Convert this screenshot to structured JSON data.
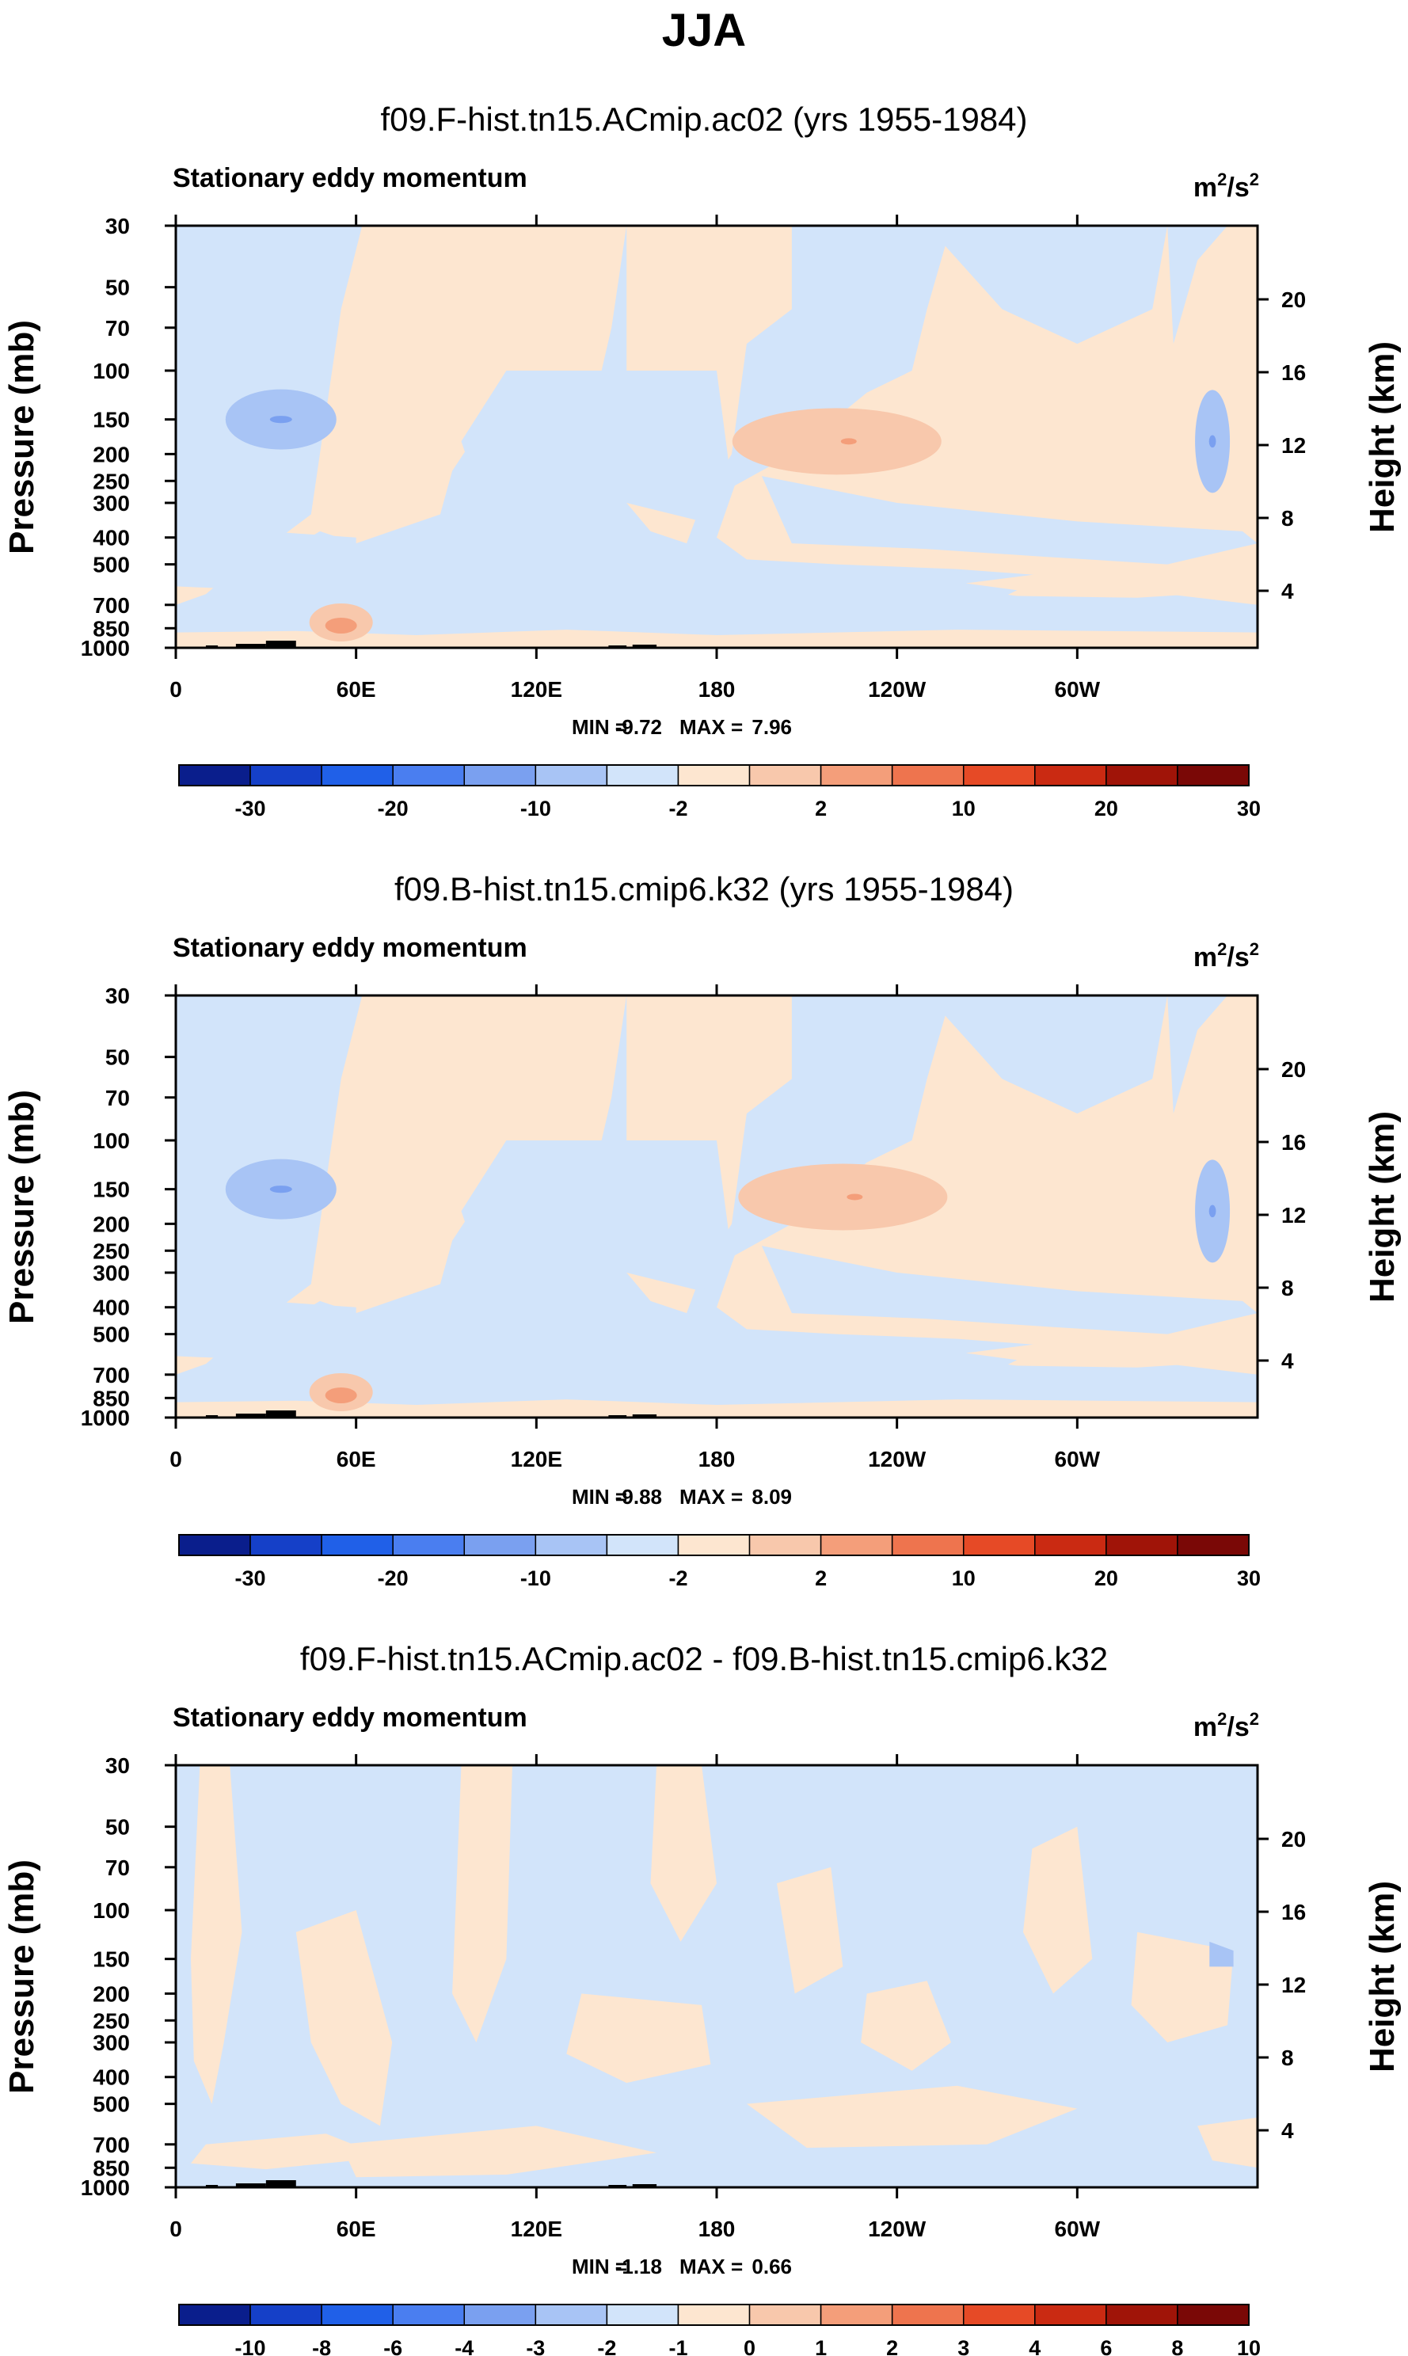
{
  "page_title": "JJA",
  "chart_data": [
    {
      "type": "contour",
      "title": "f09.F-hist.tn15.ACmip.ac02 (yrs 1955-1984)",
      "variable": "Stationary eddy momentum",
      "units": "m²/s²",
      "unit_base": "m",
      "unit_mid": "/s",
      "unit_exp": "2",
      "ylabel": "Pressure (mb)",
      "ylabel_right": "Height (km)",
      "x_ticks": [
        "0",
        "60E",
        "120E",
        "180",
        "120W",
        "60W"
      ],
      "x_tick_values": [
        0,
        60,
        120,
        180,
        240,
        300
      ],
      "x_range": [
        0,
        360
      ],
      "pressure_ticks": [
        "30",
        "50",
        "70",
        "100",
        "150",
        "200",
        "250",
        "300",
        "400",
        "500",
        "700",
        "850",
        "1000"
      ],
      "pressure_values": [
        30,
        50,
        70,
        100,
        150,
        200,
        250,
        300,
        400,
        500,
        700,
        850,
        1000
      ],
      "height_ticks": [
        "4",
        "8",
        "12",
        "16",
        "20"
      ],
      "height_values": [
        4,
        8,
        12,
        16,
        20
      ],
      "min_label": "MIN =",
      "min": "-9.72",
      "max_label": "MAX =",
      "max": "7.96",
      "colorbar_labels": [
        "-30",
        "-20",
        "-10",
        "-2",
        "2",
        "10",
        "20",
        "30"
      ],
      "colorbar_colors": [
        "#0a1e8c",
        "#1540c8",
        "#2060e8",
        "#4a7ef0",
        "#7aa0f0",
        "#a8c4f5",
        "#d2e4fa",
        "#fde6d0",
        "#f8c8ac",
        "#f49e7a",
        "#ee744e",
        "#e64a26",
        "#ca2a12",
        "#a01408",
        "#7a0806"
      ],
      "features": [
        {
          "kind": "blue",
          "lon": 35,
          "p": 150,
          "label": "negative maximum"
        },
        {
          "kind": "red",
          "lon": 220,
          "p": 180,
          "label": "positive maximum"
        },
        {
          "kind": "red",
          "lon": 55,
          "p": 810,
          "label": "low-level positive"
        },
        {
          "kind": "blue",
          "lon": 345,
          "p": 180,
          "label": "east negative"
        }
      ]
    },
    {
      "type": "contour",
      "title": "f09.B-hist.tn15.cmip6.k32 (yrs 1955-1984)",
      "variable": "Stationary eddy momentum",
      "units": "m²/s²",
      "unit_base": "m",
      "unit_mid": "/s",
      "unit_exp": "2",
      "ylabel": "Pressure (mb)",
      "ylabel_right": "Height (km)",
      "x_ticks": [
        "0",
        "60E",
        "120E",
        "180",
        "120W",
        "60W"
      ],
      "x_tick_values": [
        0,
        60,
        120,
        180,
        240,
        300
      ],
      "x_range": [
        0,
        360
      ],
      "pressure_ticks": [
        "30",
        "50",
        "70",
        "100",
        "150",
        "200",
        "250",
        "300",
        "400",
        "500",
        "700",
        "850",
        "1000"
      ],
      "pressure_values": [
        30,
        50,
        70,
        100,
        150,
        200,
        250,
        300,
        400,
        500,
        700,
        850,
        1000
      ],
      "height_ticks": [
        "4",
        "8",
        "12",
        "16",
        "20"
      ],
      "height_values": [
        4,
        8,
        12,
        16,
        20
      ],
      "min_label": "MIN =",
      "min": "-9.88",
      "max_label": "MAX =",
      "max": "8.09",
      "colorbar_labels": [
        "-30",
        "-20",
        "-10",
        "-2",
        "2",
        "10",
        "20",
        "30"
      ],
      "colorbar_colors": [
        "#0a1e8c",
        "#1540c8",
        "#2060e8",
        "#4a7ef0",
        "#7aa0f0",
        "#a8c4f5",
        "#d2e4fa",
        "#fde6d0",
        "#f8c8ac",
        "#f49e7a",
        "#ee744e",
        "#e64a26",
        "#ca2a12",
        "#a01408",
        "#7a0806"
      ],
      "features": [
        {
          "kind": "blue",
          "lon": 35,
          "p": 150,
          "label": "negative maximum"
        },
        {
          "kind": "red",
          "lon": 222,
          "p": 160,
          "label": "positive maximum"
        },
        {
          "kind": "red",
          "lon": 55,
          "p": 810,
          "label": "low-level positive"
        },
        {
          "kind": "blue",
          "lon": 345,
          "p": 180,
          "label": "east negative"
        }
      ]
    },
    {
      "type": "contour",
      "title": "f09.F-hist.tn15.ACmip.ac02 - f09.B-hist.tn15.cmip6.k32",
      "variable": "Stationary eddy momentum",
      "units": "m²/s²",
      "unit_base": "m",
      "unit_mid": "/s",
      "unit_exp": "2",
      "ylabel": "Pressure (mb)",
      "ylabel_right": "Height (km)",
      "x_ticks": [
        "0",
        "60E",
        "120E",
        "180",
        "120W",
        "60W"
      ],
      "x_tick_values": [
        0,
        60,
        120,
        180,
        240,
        300
      ],
      "x_range": [
        0,
        360
      ],
      "pressure_ticks": [
        "30",
        "50",
        "70",
        "100",
        "150",
        "200",
        "250",
        "300",
        "400",
        "500",
        "700",
        "850",
        "1000"
      ],
      "pressure_values": [
        30,
        50,
        70,
        100,
        150,
        200,
        250,
        300,
        400,
        500,
        700,
        850,
        1000
      ],
      "height_ticks": [
        "4",
        "8",
        "12",
        "16",
        "20"
      ],
      "height_values": [
        4,
        8,
        12,
        16,
        20
      ],
      "min_label": "MIN =",
      "min": "-1.18",
      "max_label": "MAX =",
      "max": "0.66",
      "colorbar_labels": [
        "-10",
        "-8",
        "-6",
        "-4",
        "-3",
        "-2",
        "-1",
        "0",
        "1",
        "2",
        "3",
        "4",
        "6",
        "8",
        "10"
      ],
      "colorbar_colors": [
        "#0a1e8c",
        "#1540c8",
        "#2060e8",
        "#4a7ef0",
        "#7aa0f0",
        "#a8c4f5",
        "#d2e4fa",
        "#fde6d0",
        "#f8c8ac",
        "#f49e7a",
        "#ee744e",
        "#e64a26",
        "#ca2a12",
        "#a01408",
        "#7a0806"
      ],
      "features": [
        {
          "kind": "blue",
          "lon": 350,
          "p": 150,
          "label": "small negative"
        }
      ]
    }
  ]
}
